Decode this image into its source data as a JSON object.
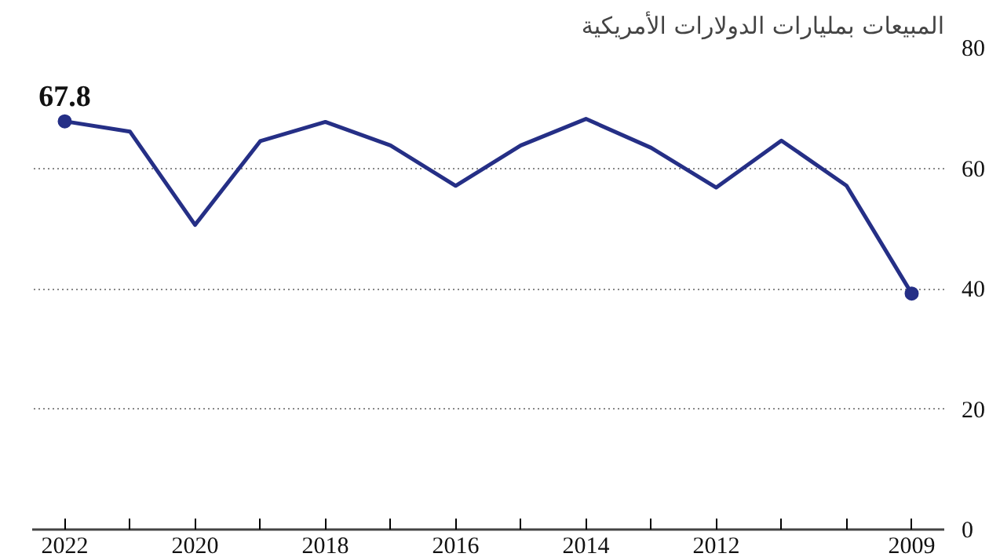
{
  "chart_data": {
    "type": "line",
    "title": "المبيعات بمليارات الدولارات الأمريكية",
    "x": [
      2022,
      2021,
      2020,
      2019,
      2018,
      2017,
      2016,
      2015,
      2014,
      2013,
      2012,
      2011,
      2010,
      2009
    ],
    "series": [
      {
        "color": "#252f86",
        "values": [
          67.8,
          66.1,
          50.6,
          64.5,
          67.7,
          63.8,
          57.1,
          63.8,
          68.2,
          63.4,
          56.8,
          64.6,
          57.1,
          39.2
        ],
        "value_labels": [
          "67.8",
          null,
          null,
          null,
          null,
          null,
          null,
          null,
          null,
          null,
          null,
          null,
          null,
          null
        ]
      },
      {
        "type": "scatter",
        "color": "#252f86",
        "x": [
          2022,
          2009
        ],
        "values": [
          67.8,
          39.2
        ]
      }
    ],
    "xlim": [
      2022.5,
      2008.5
    ],
    "xticks": [
      2022,
      {
        "value": 2021,
        "label": null
      },
      2020,
      {
        "value": 2019,
        "label": null
      },
      2018,
      {
        "value": 2017,
        "label": null
      },
      2016,
      {
        "value": 2015,
        "label": null
      },
      2014,
      {
        "value": 2013,
        "label": null
      },
      2012,
      {
        "value": 2011,
        "label": null
      },
      {
        "value": 2010,
        "label": null
      },
      2009
    ],
    "ylim": [
      0,
      80
    ],
    "yticks": [
      0,
      20,
      40,
      60,
      80
    ],
    "grid": "y",
    "line_style": "solid"
  }
}
